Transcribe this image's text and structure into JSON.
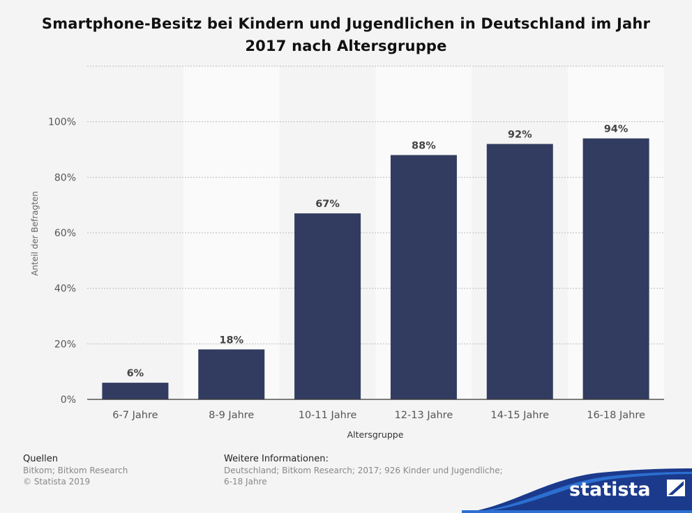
{
  "title": "Smartphone-Besitz bei Kindern und Jugendlichen in Deutschland im Jahr 2017 nach Altersgruppe",
  "colors": {
    "bar": "#323c60",
    "background": "#f4f4f4",
    "band": "#fafafa",
    "brand_wave": "#1b3a8c",
    "brand_wave_light": "#2c6fd1"
  },
  "chart_data": {
    "type": "bar",
    "categories": [
      "6-7 Jahre",
      "8-9 Jahre",
      "10-11 Jahre",
      "12-13 Jahre",
      "14-15 Jahre",
      "16-18 Jahre"
    ],
    "values": [
      6,
      18,
      67,
      88,
      92,
      94
    ],
    "value_labels": [
      "6%",
      "18%",
      "67%",
      "88%",
      "92%",
      "94%"
    ],
    "ylabel": "Anteil der Befragten",
    "xlabel": "Altersgruppe",
    "ylim": [
      0,
      120
    ],
    "yticks": [
      0,
      20,
      40,
      60,
      80,
      100
    ],
    "ytick_labels": [
      "0%",
      "20%",
      "40%",
      "60%",
      "80%",
      "100%"
    ],
    "grid": true
  },
  "footer": {
    "sources_heading": "Quellen",
    "sources_line1": "Bitkom; Bitkom Research",
    "sources_line2": "© Statista 2019",
    "info_heading": "Weitere Informationen:",
    "info_text": "Deutschland; Bitkom Research; 2017; 926 Kinder und Jugendliche; 6-18 Jahre"
  },
  "brand": {
    "name": "statista",
    "icon": "statista-logo-icon"
  }
}
